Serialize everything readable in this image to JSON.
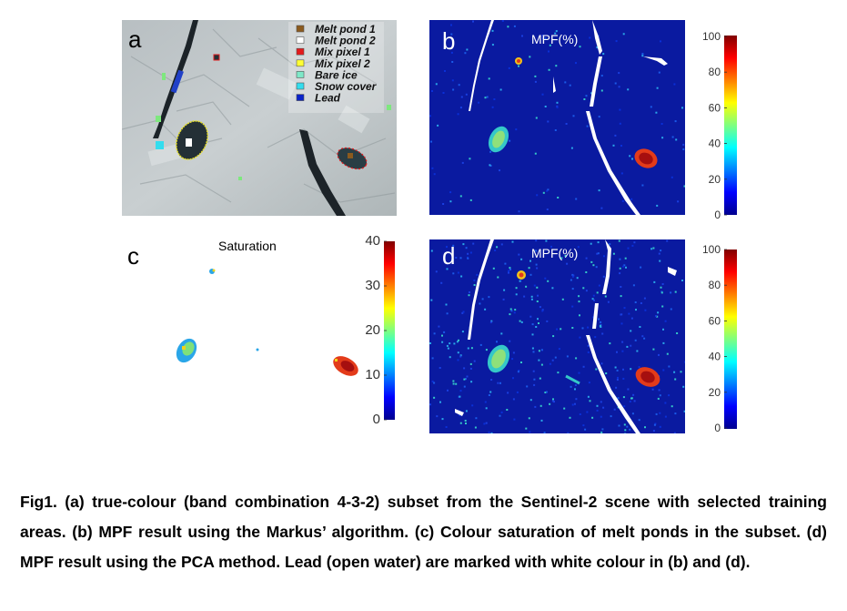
{
  "panels": {
    "a": {
      "label": "a"
    },
    "b": {
      "label": "b",
      "title": "MPF(%)"
    },
    "c": {
      "label": "c",
      "title": "Saturation"
    },
    "d": {
      "label": "d",
      "title": "MPF(%)"
    }
  },
  "legend": {
    "items": [
      {
        "label": "Melt pond 1",
        "color": "#8b5a1e"
      },
      {
        "label": "Melt pond 2",
        "color": "#ffffff"
      },
      {
        "label": "Mix pixel 1",
        "color": "#e31a1c"
      },
      {
        "label": "Mix pixel 2",
        "color": "#ffff33"
      },
      {
        "label": "Bare ice",
        "color": "#7ee8c8"
      },
      {
        "label": "Snow cover",
        "color": "#33ddee"
      },
      {
        "label": "Lead",
        "color": "#0a23c8"
      }
    ]
  },
  "colorbars": {
    "mpf_ticks": [
      "100",
      "80",
      "60",
      "40",
      "20",
      "0"
    ],
    "saturation_ticks": [
      "40",
      "30",
      "20",
      "10",
      "0"
    ]
  },
  "colors": {
    "map_background": "#0a1aa0",
    "lead": "#ffffff",
    "jet_low": "#00008f",
    "jet_high": "#800000"
  },
  "caption": "Fig1. (a) true-colour (band combination 4-3-2) subset from the Sentinel-2 scene with selected training areas. (b) MPF result using the Markus’ algorithm. (c) Colour saturation of melt ponds in the subset. (d) MPF result using the PCA method. Lead (open water) are marked with white colour in (b) and (d)."
}
